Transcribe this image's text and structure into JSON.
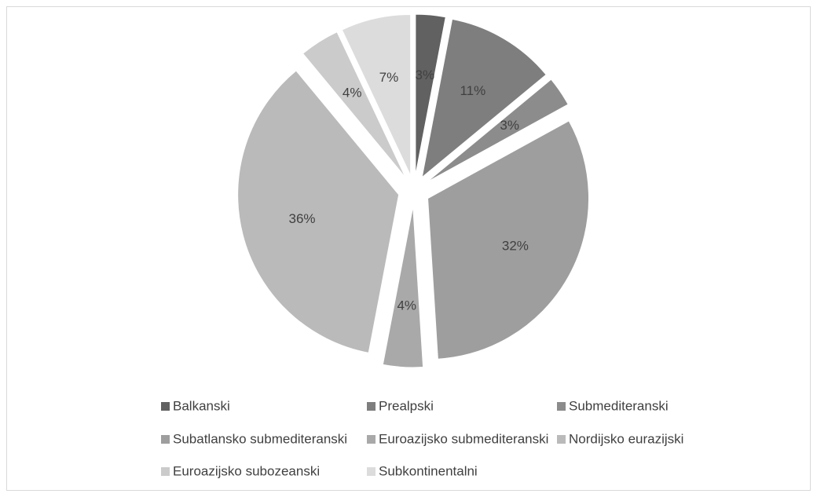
{
  "chart_data": {
    "type": "pie",
    "categories": [
      "Balkanski",
      "Prealpski",
      "Submediteranski",
      "Subatlansko submediteranski",
      "Euroazijsko submediteranski",
      "Nordijsko eurazijski",
      "Euroazijsko subozeanski",
      "Subkontinentalni"
    ],
    "values": [
      3,
      11,
      3,
      32,
      4,
      36,
      4,
      7
    ],
    "value_labels": [
      "3%",
      "11%",
      "3%",
      "32%",
      "4%",
      "36%",
      "4%",
      "7%"
    ],
    "colors": [
      "#616161",
      "#7e7e7e",
      "#8c8c8c",
      "#9e9e9e",
      "#a9a9a9",
      "#bababa",
      "#cbcbcb",
      "#dcdcdc"
    ],
    "legend": "bottom"
  }
}
